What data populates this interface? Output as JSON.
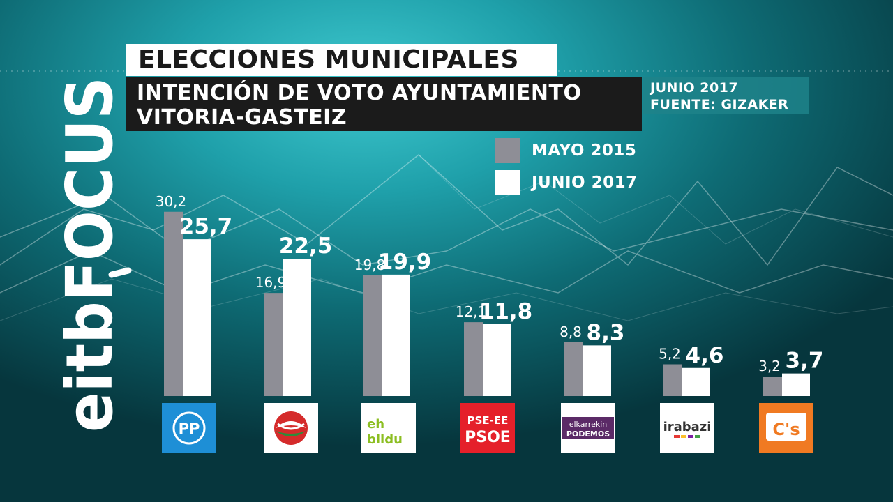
{
  "header": {
    "title": "ELECCIONES MUNICIPALES",
    "subtitle_line1": "INTENCIÓN DE VOTO AYUNTAMIENTO",
    "subtitle_line2": "VITORIA-GASTEIZ",
    "date": "JUNIO 2017",
    "source": "FUENTE: GIZAKER"
  },
  "brand": {
    "logo_text": "eitbFOCUS"
  },
  "colors": {
    "mayo_2015": "#8e8e96",
    "junio_2017": "#ffffff"
  },
  "parties": [
    {
      "name": "PP",
      "logo_text": "PP",
      "icon": "pp-logo-icon"
    },
    {
      "name": "PNV",
      "logo_text": "",
      "icon": "pnv-logo-icon"
    },
    {
      "name": "EH Bildu",
      "logo_text": "eh bildu",
      "icon": "ehbildu-logo-icon"
    },
    {
      "name": "PSE-EE PSOE",
      "logo_text": "PSE-EE PSOE",
      "icon": "psoe-logo-icon"
    },
    {
      "name": "Elkarrekin Podemos",
      "logo_text": "elkarrekin PODEMOS",
      "icon": "podemos-logo-icon"
    },
    {
      "name": "Irabazi",
      "logo_text": "irabazi",
      "icon": "irabazi-logo-icon"
    },
    {
      "name": "C's",
      "logo_text": "C's",
      "icon": "cs-logo-icon"
    }
  ],
  "chart_data": {
    "type": "bar",
    "title": "INTENCIÓN DE VOTO AYUNTAMIENTO VITORIA-GASTEIZ",
    "categories": [
      "PP",
      "PNV",
      "EH Bildu",
      "PSE-EE PSOE",
      "Elkarrekin Podemos",
      "Irabazi",
      "C's"
    ],
    "series": [
      {
        "name": "MAYO 2015",
        "values": [
          30.2,
          16.9,
          19.8,
          12.1,
          8.8,
          5.2,
          3.2
        ],
        "labels": [
          "30,2",
          "16,9",
          "19,8",
          "12,1",
          "8,8",
          "5,2",
          "3,2"
        ]
      },
      {
        "name": "JUNIO 2017",
        "values": [
          25.7,
          22.5,
          19.9,
          11.8,
          8.3,
          4.6,
          3.7
        ],
        "labels": [
          "25,7",
          "22,5",
          "19,9",
          "11,8",
          "8,3",
          "4,6",
          "3,7"
        ]
      }
    ],
    "legend_position": "top-right",
    "grid": false,
    "xlabel": "",
    "ylabel": ""
  }
}
